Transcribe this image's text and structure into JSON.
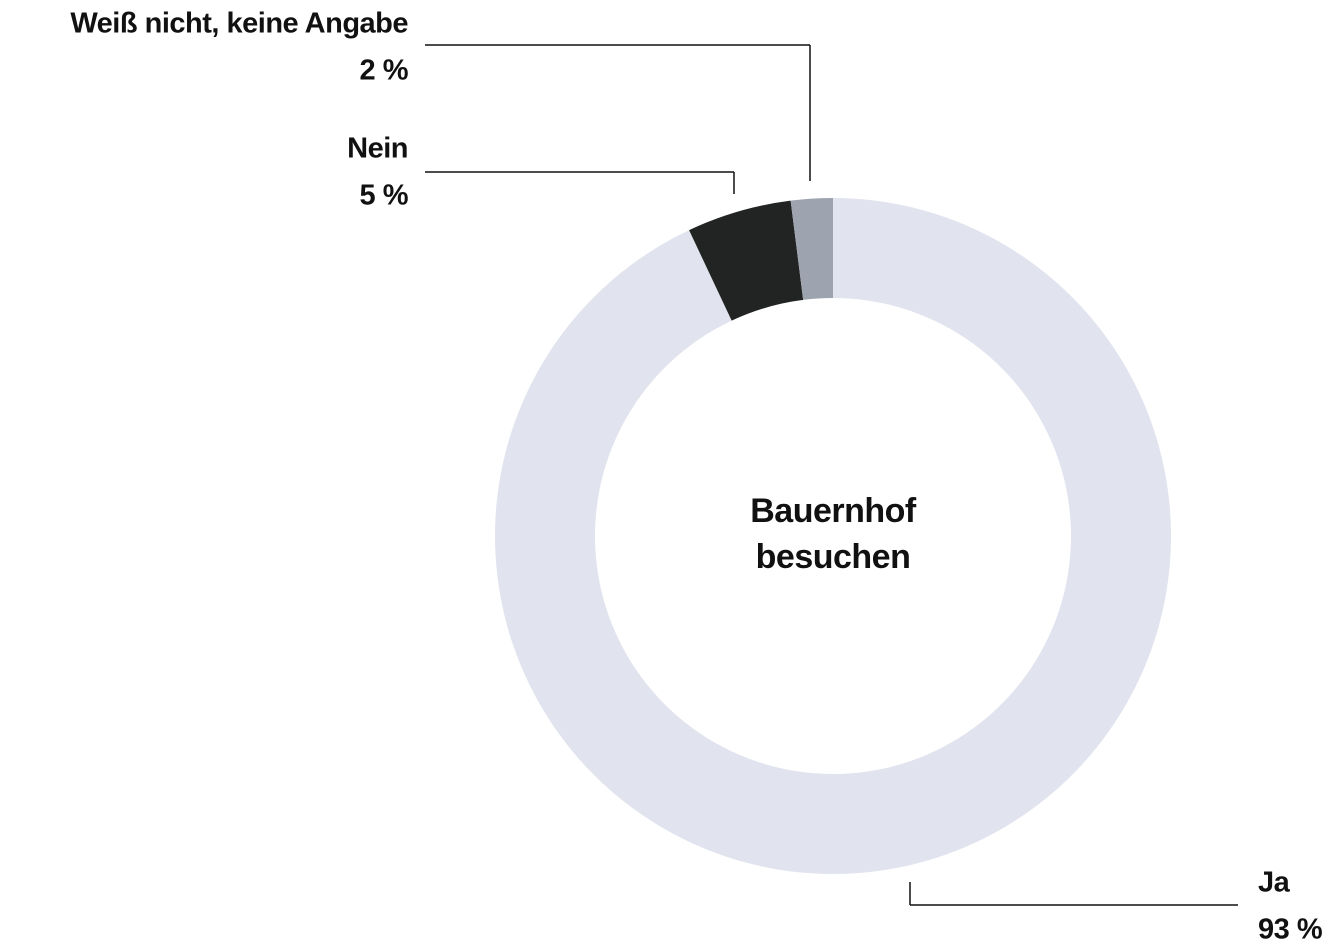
{
  "chart_data": {
    "type": "donut",
    "center_label": "Bauernhof besuchen",
    "categories": [
      "Ja",
      "Nein",
      "Weiß nicht, keine Angabe"
    ],
    "values": [
      93,
      5,
      2
    ],
    "value_labels": [
      "93 %",
      "5 %",
      "2 %"
    ],
    "colors": [
      "#e1e3ee",
      "#222423",
      "#9ea3b0"
    ]
  }
}
